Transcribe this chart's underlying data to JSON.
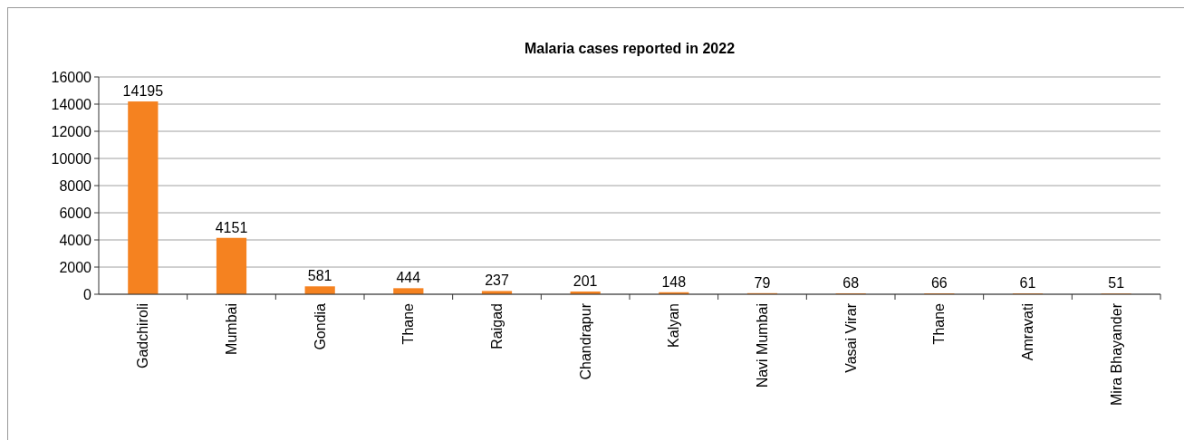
{
  "chart_data": {
    "type": "bar",
    "title": "Malaria cases reported in 2022",
    "categories": [
      "Gadchiroli",
      "Mumbai",
      "Gondia",
      "Thane",
      "Raigad",
      "Chandrapur",
      "Kalyan",
      "Navi Mumbai",
      "Vasai Virar",
      "Thane",
      "Amravati",
      "Mira Bhayander"
    ],
    "values": [
      14195,
      4151,
      581,
      444,
      237,
      201,
      148,
      79,
      68,
      66,
      61,
      51
    ],
    "color": "#f58220",
    "ylim": [
      0,
      16000
    ],
    "yticks": [
      0,
      2000,
      4000,
      6000,
      8000,
      10000,
      12000,
      14000,
      16000
    ],
    "grid": "y",
    "data_labels": true
  }
}
